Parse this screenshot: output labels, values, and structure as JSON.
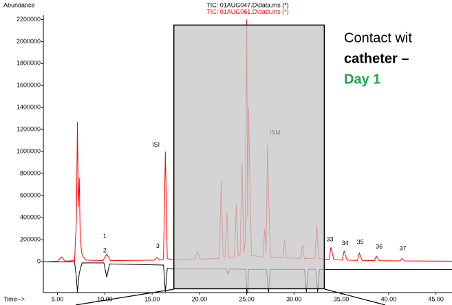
{
  "chart_data": {
    "type": "line",
    "ylabel": "Abundance",
    "xlabel": "Time-->",
    "xlim": [
      3.5,
      46.7
    ],
    "ylim": [
      -280000,
      2240000
    ],
    "xticks": [
      {
        "value": 5,
        "label": "5.00"
      },
      {
        "value": 10,
        "label": "10.00"
      },
      {
        "value": 15,
        "label": "15.00"
      },
      {
        "value": 20,
        "label": "20.00"
      },
      {
        "value": 25,
        "label": "25.00"
      },
      {
        "value": 30,
        "label": "30.00"
      },
      {
        "value": 35,
        "label": "35.00"
      },
      {
        "value": 40,
        "label": "40.00"
      },
      {
        "value": 45,
        "label": "45.00"
      }
    ],
    "yticks": [
      0,
      200000,
      400000,
      600000,
      800000,
      1000000,
      1200000,
      1400000,
      1600000,
      1800000,
      2000000,
      2200000
    ],
    "series": [
      {
        "name": "TIC: 01AUG047.D\\data.ms (*)",
        "color": "#000000",
        "x": [
          3.5,
          6.8,
          7.0,
          7.1,
          7.3,
          7.6,
          9.9,
          10.2,
          10.5,
          16.2,
          16.4,
          16.6,
          17.0,
          22.8,
          23.0,
          23.2,
          24.9,
          25.0,
          25.1,
          25.2,
          27.1,
          27.3,
          27.5,
          31.1,
          31.3,
          31.5,
          32.3,
          32.5,
          32.7,
          46.7
        ],
        "values": [
          0,
          0,
          -150000,
          -275000,
          -100000,
          -10000,
          -10000,
          -140000,
          -20000,
          -30000,
          -275000,
          -60000,
          -65000,
          -65000,
          -110000,
          -65000,
          -70000,
          -275000,
          -275000,
          -70000,
          -70000,
          -275000,
          -70000,
          -70000,
          -275000,
          -70000,
          -70000,
          -275000,
          -70000,
          -70000
        ]
      },
      {
        "name": "TIC: 01AUG061.D\\data.ms (*)",
        "color": "#ff0000",
        "x": [
          3.5,
          5.0,
          5.4,
          5.8,
          6.8,
          7.0,
          7.1,
          7.2,
          7.3,
          7.4,
          7.6,
          8.0,
          9.8,
          10.2,
          10.6,
          15.2,
          15.5,
          15.8,
          16.2,
          16.4,
          16.6,
          17.0,
          19.5,
          19.8,
          20.1,
          22.1,
          22.3,
          22.5,
          22.7,
          22.9,
          23.1,
          23.7,
          23.9,
          24.1,
          24.3,
          24.5,
          24.7,
          24.85,
          25.0,
          25.1,
          25.2,
          25.35,
          25.5,
          26.7,
          26.9,
          27.05,
          27.2,
          27.35,
          27.5,
          27.7,
          28.8,
          29.0,
          29.2,
          30.7,
          30.9,
          31.1,
          32.2,
          32.4,
          32.6,
          33.7,
          33.9,
          34.2,
          35.1,
          35.3,
          35.6,
          36.7,
          36.9,
          37.2,
          38.5,
          38.7,
          39.0,
          41.2,
          41.4,
          41.7,
          46.7
        ],
        "values": [
          0,
          5000,
          45000,
          5000,
          10000,
          400000,
          1270000,
          500000,
          760000,
          200000,
          60000,
          15000,
          10000,
          70000,
          10000,
          15000,
          40000,
          15000,
          20000,
          1000000,
          30000,
          20000,
          25000,
          90000,
          25000,
          30000,
          730000,
          60000,
          40000,
          450000,
          40000,
          40000,
          520000,
          50000,
          60000,
          900000,
          80000,
          200000,
          2200000,
          400000,
          1400000,
          700000,
          60000,
          40000,
          300000,
          80000,
          1060000,
          500000,
          60000,
          40000,
          35000,
          200000,
          35000,
          30000,
          150000,
          30000,
          30000,
          330000,
          30000,
          20000,
          130000,
          20000,
          15000,
          100000,
          15000,
          12000,
          80000,
          12000,
          10000,
          50000,
          10000,
          8000,
          30000,
          8000,
          5000
        ]
      }
    ],
    "region": {
      "x": [
        17.3,
        33.2
      ],
      "y": [
        -245000,
        2150000
      ]
    },
    "annotations": [
      {
        "text": "1",
        "x": 10.0,
        "y": 230000
      },
      {
        "text": "2",
        "x": 10.0,
        "y": 100000
      },
      {
        "text": "3",
        "x": 15.6,
        "y": 140000
      },
      {
        "text": "ISI",
        "x": 15.4,
        "y": 1060000
      },
      {
        "text": "ISM",
        "x": 28.0,
        "y": 1170000,
        "color": "#888888"
      },
      {
        "text": "33",
        "x": 33.8,
        "y": 200000
      },
      {
        "text": "34",
        "x": 35.4,
        "y": 165000
      },
      {
        "text": "35",
        "x": 37.0,
        "y": 175000
      },
      {
        "text": "36",
        "x": 39.0,
        "y": 135000
      },
      {
        "text": "37",
        "x": 41.5,
        "y": 120000
      }
    ],
    "caption": [
      "Contact wit",
      "catheter –",
      "Day 1"
    ]
  }
}
